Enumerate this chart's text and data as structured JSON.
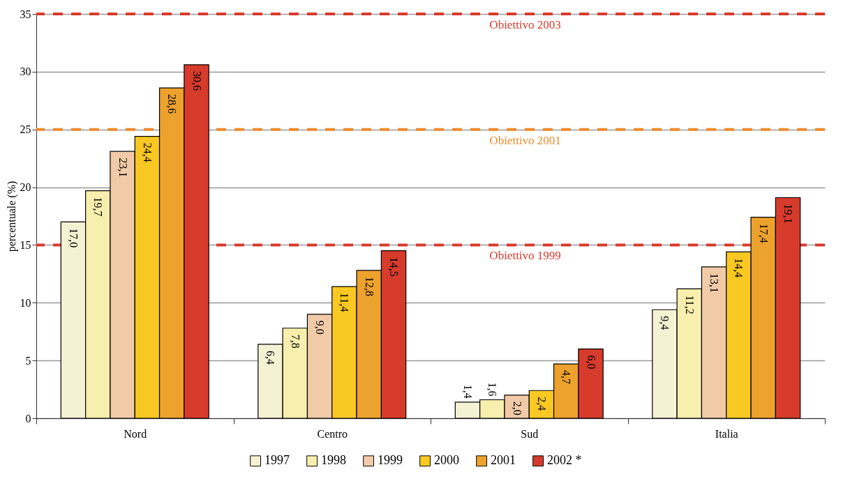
{
  "chart_data": {
    "type": "bar",
    "ylabel": "percentuale (%)",
    "categories": [
      "Nord",
      "Centro",
      "Sud",
      "Italia"
    ],
    "series": [
      {
        "name": "1997",
        "color": "#f5f1d3",
        "values": [
          17.0,
          6.4,
          1.4,
          9.4
        ],
        "value_labels": [
          "17,0",
          "6,4",
          "1,4",
          "9,4"
        ]
      },
      {
        "name": "1998",
        "color": "#f8efae",
        "values": [
          19.7,
          7.8,
          1.6,
          11.2
        ],
        "value_labels": [
          "19,7",
          "7,8",
          "1,6",
          "11,2"
        ]
      },
      {
        "name": "1999",
        "color": "#f1cba8",
        "values": [
          23.1,
          9.0,
          2.0,
          13.1
        ],
        "value_labels": [
          "23,1",
          "9,0",
          "2,0",
          "13,1"
        ]
      },
      {
        "name": "2000",
        "color": "#f9c823",
        "values": [
          24.4,
          11.4,
          2.4,
          14.4
        ],
        "value_labels": [
          "24,4",
          "11,4",
          "2,4",
          "14,4"
        ]
      },
      {
        "name": "2001",
        "color": "#eda22d",
        "values": [
          28.6,
          12.8,
          4.7,
          17.4
        ],
        "value_labels": [
          "28,6",
          "12,8",
          "4,7",
          "17,4"
        ]
      },
      {
        "name": "2002 *",
        "color": "#d63b2b",
        "values": [
          30.6,
          14.5,
          6.0,
          19.1
        ],
        "value_labels": [
          "30,6",
          "14,5",
          "6,0",
          "19,1"
        ]
      }
    ],
    "ylim": [
      0,
      35
    ],
    "yticks": [
      0,
      5,
      10,
      15,
      20,
      25,
      30,
      35
    ],
    "grid": "y",
    "legend": "bottom",
    "ref_lines": [
      {
        "axis": "y",
        "value": 35,
        "label": "Obiettivo 2003",
        "color": "#d93a2b",
        "line_style": "dashed"
      },
      {
        "axis": "y",
        "value": 25,
        "label": "Obiettivo 2001",
        "color": "#f08a2c",
        "line_style": "dashed"
      },
      {
        "axis": "y",
        "value": 15,
        "label": "Obiettivo 1999",
        "color": "#d93a2b",
        "line_style": "dashed"
      }
    ]
  }
}
